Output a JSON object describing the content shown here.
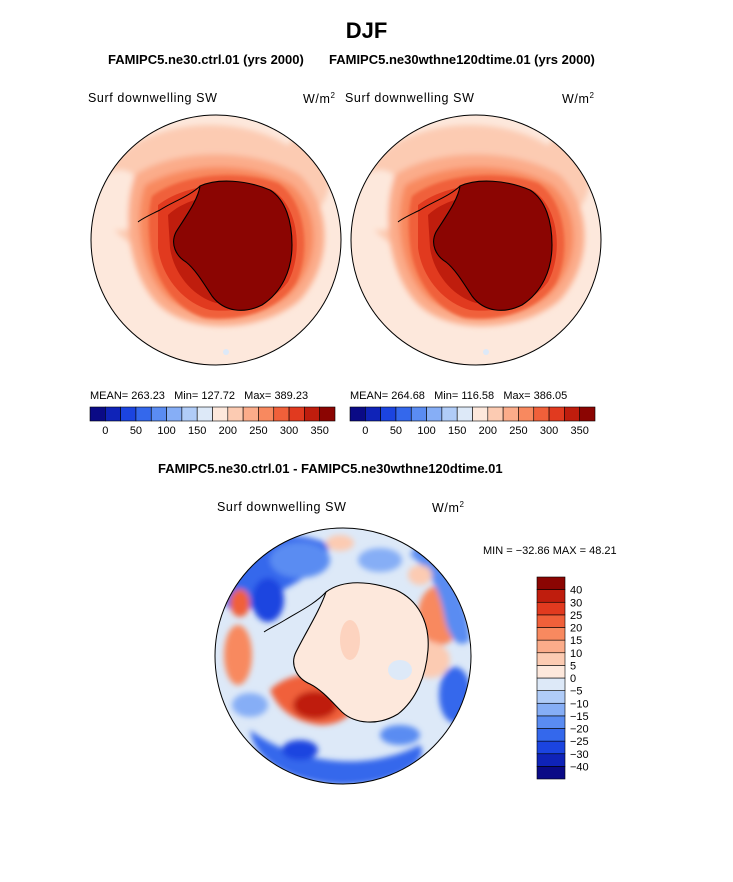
{
  "title": "DJF",
  "panels": {
    "top_left": {
      "case": "FAMIPC5.ne30.ctrl.01 (yrs 2000)",
      "variable": "Surf downwelling SW",
      "units": "W/m",
      "units_exp": "2",
      "stats": {
        "mean_label": "MEAN=",
        "mean": "263.23",
        "min_label": "Min=",
        "min": "127.72",
        "max_label": "Max=",
        "max": "389.23"
      }
    },
    "top_right": {
      "case": "FAMIPC5.ne30wthne120dtime.01 (yrs 2000)",
      "variable": "Surf downwelling SW",
      "units": "W/m",
      "units_exp": "2",
      "stats": {
        "mean_label": "MEAN=",
        "mean": "264.68",
        "min_label": "Min=",
        "min": "116.58",
        "max_label": "Max=",
        "max": "386.05"
      }
    },
    "bottom": {
      "title": "FAMIPC5.ne30.ctrl.01 - FAMIPC5.ne30wthne120dtime.01",
      "variable": "Surf downwelling SW",
      "units": "W/m",
      "units_exp": "2",
      "stats": {
        "min_label": "MIN =",
        "min": "−32.86",
        "max_label": "MAX =",
        "max": "48.21"
      }
    }
  },
  "chart_data": [
    {
      "type": "heatmap",
      "projection": "south-polar-stereographic",
      "name": "top_left",
      "colorbar": {
        "orientation": "horizontal",
        "levels": [
          0,
          25,
          50,
          75,
          100,
          125,
          150,
          175,
          200,
          225,
          250,
          275,
          300,
          325,
          350
        ],
        "tick_labels": [
          "0",
          "50",
          "100",
          "150",
          "200",
          "250",
          "300",
          "350"
        ],
        "colors": [
          "#0a0a86",
          "#0f23b8",
          "#1b44e0",
          "#3468ec",
          "#5a8cf2",
          "#86aef6",
          "#b0ccf8",
          "#dde9f8",
          "#fde8dc",
          "#fccbb2",
          "#fbac8a",
          "#f8895f",
          "#f0603a",
          "#e13a1f",
          "#bf1d0d",
          "#8b0502"
        ]
      }
    },
    {
      "type": "heatmap",
      "projection": "south-polar-stereographic",
      "name": "top_right",
      "colorbar": {
        "orientation": "horizontal",
        "levels": [
          0,
          25,
          50,
          75,
          100,
          125,
          150,
          175,
          200,
          225,
          250,
          275,
          300,
          325,
          350
        ],
        "tick_labels": [
          "0",
          "50",
          "100",
          "150",
          "200",
          "250",
          "300",
          "350"
        ],
        "colors": [
          "#0a0a86",
          "#0f23b8",
          "#1b44e0",
          "#3468ec",
          "#5a8cf2",
          "#86aef6",
          "#b0ccf8",
          "#dde9f8",
          "#fde8dc",
          "#fccbb2",
          "#fbac8a",
          "#f8895f",
          "#f0603a",
          "#e13a1f",
          "#bf1d0d",
          "#8b0502"
        ]
      }
    },
    {
      "type": "heatmap",
      "projection": "south-polar-stereographic",
      "name": "difference",
      "colorbar": {
        "orientation": "vertical",
        "levels": [
          -40,
          -30,
          -25,
          -20,
          -15,
          -10,
          -5,
          0,
          5,
          10,
          15,
          20,
          25,
          30,
          40
        ],
        "tick_labels": [
          "−40",
          "−30",
          "−25",
          "−20",
          "−15",
          "−10",
          "−5",
          "0",
          "5",
          "10",
          "15",
          "20",
          "25",
          "30",
          "40"
        ],
        "colors": [
          "#0a0a86",
          "#0f23b8",
          "#1b44e0",
          "#3468ec",
          "#5a8cf2",
          "#86aef6",
          "#b0ccf8",
          "#dde9f8",
          "#fde8dc",
          "#fccbb2",
          "#fbac8a",
          "#f8895f",
          "#f0603a",
          "#e13a1f",
          "#bf1d0d",
          "#8b0502"
        ]
      }
    }
  ]
}
